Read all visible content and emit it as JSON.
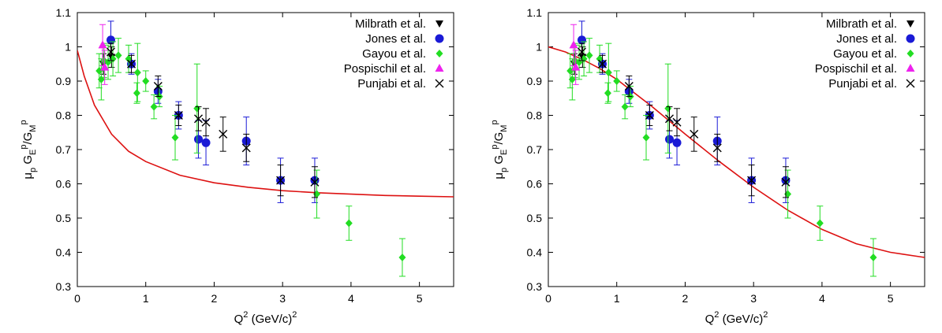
{
  "chart_data": [
    {
      "type": "scatter",
      "xlabel": "Q2 (GeV/c)2",
      "ylabel": "μp GEp/GMp",
      "xlim": [
        0,
        5.5
      ],
      "ylim": [
        0.3,
        1.1
      ],
      "xticks": [
        0,
        1,
        2,
        3,
        4,
        5
      ],
      "yticks": [
        0.3,
        0.4,
        0.5,
        0.6,
        0.7,
        0.8,
        0.9,
        1,
        1.1
      ],
      "xtick_labels": [
        "0",
        "1",
        "2",
        "3",
        "4",
        "5"
      ],
      "ytick_labels": [
        "0.3",
        "0.4",
        "0.5",
        "0.6",
        "0.7",
        "0.8",
        "0.9",
        "1",
        "1.1"
      ],
      "grid": false,
      "legend_position": "top-right",
      "series": [
        {
          "name": "Milbrath et al.",
          "marker": "triangle-down",
          "color": "#000000",
          "x": [
            0.38,
            0.5
          ],
          "y": [
            0.95,
            0.97
          ],
          "err": [
            0.03,
            0.03
          ]
        },
        {
          "name": "Jones et al.",
          "marker": "circle",
          "color": "#1a1ad6",
          "x": [
            0.49,
            0.79,
            1.18,
            1.48,
            1.77,
            1.88,
            2.47,
            2.97,
            3.47
          ],
          "y": [
            1.02,
            0.95,
            0.87,
            0.8,
            0.73,
            0.72,
            0.725,
            0.61,
            0.61
          ],
          "err": [
            0.055,
            0.03,
            0.035,
            0.04,
            0.055,
            0.065,
            0.07,
            0.065,
            0.065
          ]
        },
        {
          "name": "Gayou et al.",
          "marker": "diamond",
          "color": "#22dd22",
          "x": [
            0.32,
            0.35,
            0.39,
            0.45,
            0.52,
            0.6,
            0.75,
            0.87,
            0.88,
            1.0,
            1.12,
            1.2,
            1.43,
            1.75,
            3.5,
            3.97,
            4.75
          ],
          "y": [
            0.93,
            0.905,
            0.96,
            0.955,
            0.965,
            0.975,
            0.965,
            0.865,
            0.925,
            0.9,
            0.825,
            0.855,
            0.735,
            0.82,
            0.57,
            0.485,
            0.385
          ],
          "err": [
            0.05,
            0.06,
            0.05,
            0.05,
            0.05,
            0.05,
            0.04,
            0.03,
            0.085,
            0.03,
            0.035,
            0.03,
            0.065,
            0.13,
            0.07,
            0.05,
            0.055
          ]
        },
        {
          "name": "Pospischil et al.",
          "marker": "triangle-up",
          "color": "#ee22ee",
          "x": [
            0.37,
            0.4
          ],
          "y": [
            1.005,
            0.94
          ],
          "err": [
            0.06,
            0.05
          ]
        },
        {
          "name": "Punjabi et al.",
          "marker": "cross",
          "color": "#000000",
          "x": [
            0.49,
            0.79,
            1.18,
            1.48,
            1.77,
            1.88,
            2.13,
            2.47,
            2.97,
            3.47
          ],
          "y": [
            0.985,
            0.95,
            0.885,
            0.8,
            0.79,
            0.78,
            0.745,
            0.705,
            0.61,
            0.605
          ],
          "err": [
            0.025,
            0.025,
            0.03,
            0.03,
            0.035,
            0.04,
            0.05,
            0.04,
            0.045,
            0.045
          ]
        }
      ],
      "curve": {
        "color": "#dd1111",
        "x": [
          0,
          0.1,
          0.25,
          0.5,
          0.75,
          1.0,
          1.5,
          2.0,
          2.5,
          3.0,
          3.5,
          4.0,
          4.5,
          5.0,
          5.5
        ],
        "y": [
          0.99,
          0.915,
          0.83,
          0.745,
          0.695,
          0.665,
          0.625,
          0.603,
          0.59,
          0.58,
          0.574,
          0.57,
          0.566,
          0.564,
          0.562
        ]
      }
    },
    {
      "type": "scatter",
      "xlabel": "Q2 (GeV/c)2",
      "ylabel": "μp GEp/GMp",
      "xlim": [
        0,
        5.5
      ],
      "ylim": [
        0.3,
        1.1
      ],
      "xticks": [
        0,
        1,
        2,
        3,
        4,
        5
      ],
      "yticks": [
        0.3,
        0.4,
        0.5,
        0.6,
        0.7,
        0.8,
        0.9,
        1,
        1.1
      ],
      "xtick_labels": [
        "0",
        "1",
        "2",
        "3",
        "4",
        "5"
      ],
      "ytick_labels": [
        "0.3",
        "0.4",
        "0.5",
        "0.6",
        "0.7",
        "0.8",
        "0.9",
        "1",
        "1.1"
      ],
      "grid": false,
      "legend_position": "top-right",
      "series": [
        {
          "name": "Milbrath et al.",
          "marker": "triangle-down",
          "color": "#000000",
          "x": [
            0.38,
            0.5
          ],
          "y": [
            0.95,
            0.97
          ],
          "err": [
            0.03,
            0.03
          ]
        },
        {
          "name": "Jones et al.",
          "marker": "circle",
          "color": "#1a1ad6",
          "x": [
            0.49,
            0.79,
            1.18,
            1.48,
            1.77,
            1.88,
            2.47,
            2.97,
            3.47
          ],
          "y": [
            1.02,
            0.95,
            0.87,
            0.8,
            0.73,
            0.72,
            0.725,
            0.61,
            0.61
          ],
          "err": [
            0.055,
            0.03,
            0.035,
            0.04,
            0.055,
            0.065,
            0.07,
            0.065,
            0.065
          ]
        },
        {
          "name": "Gayou et al.",
          "marker": "diamond",
          "color": "#22dd22",
          "x": [
            0.32,
            0.35,
            0.39,
            0.45,
            0.52,
            0.6,
            0.75,
            0.87,
            0.88,
            1.0,
            1.12,
            1.2,
            1.43,
            1.75,
            3.5,
            3.97,
            4.75
          ],
          "y": [
            0.93,
            0.905,
            0.96,
            0.955,
            0.965,
            0.975,
            0.965,
            0.865,
            0.925,
            0.9,
            0.825,
            0.855,
            0.735,
            0.82,
            0.57,
            0.485,
            0.385
          ],
          "err": [
            0.05,
            0.06,
            0.05,
            0.05,
            0.05,
            0.05,
            0.04,
            0.03,
            0.085,
            0.03,
            0.035,
            0.03,
            0.065,
            0.13,
            0.07,
            0.05,
            0.055
          ]
        },
        {
          "name": "Pospischil et al.",
          "marker": "triangle-up",
          "color": "#ee22ee",
          "x": [
            0.37,
            0.4
          ],
          "y": [
            1.005,
            0.94
          ],
          "err": [
            0.06,
            0.05
          ]
        },
        {
          "name": "Punjabi et al.",
          "marker": "cross",
          "color": "#000000",
          "x": [
            0.49,
            0.79,
            1.18,
            1.48,
            1.77,
            1.88,
            2.13,
            2.47,
            2.97,
            3.47
          ],
          "y": [
            0.985,
            0.95,
            0.885,
            0.8,
            0.79,
            0.78,
            0.745,
            0.705,
            0.61,
            0.605
          ],
          "err": [
            0.025,
            0.025,
            0.03,
            0.03,
            0.035,
            0.04,
            0.05,
            0.04,
            0.045,
            0.045
          ]
        }
      ],
      "curve": {
        "color": "#dd1111",
        "x": [
          0,
          0.25,
          0.5,
          0.75,
          1.0,
          1.5,
          2.0,
          2.5,
          3.0,
          3.5,
          4.0,
          4.5,
          5.0,
          5.5
        ],
        "y": [
          1.0,
          0.985,
          0.963,
          0.937,
          0.905,
          0.828,
          0.745,
          0.665,
          0.59,
          0.523,
          0.467,
          0.425,
          0.4,
          0.385
        ]
      }
    }
  ]
}
